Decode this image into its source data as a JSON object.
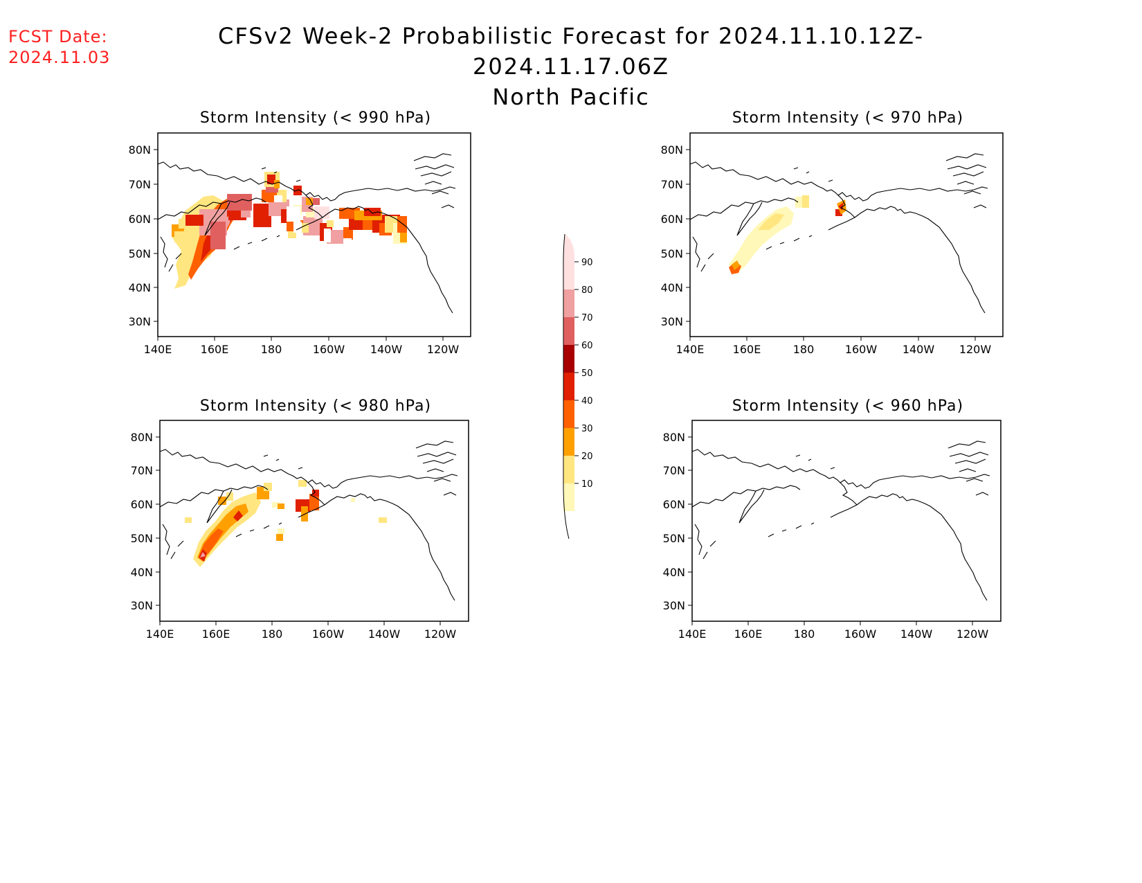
{
  "header": {
    "fcst_date_label": "FCST Date:",
    "fcst_date_value": "2024.11.03",
    "title_line1": "CFSv2 Week-2 Probabilistic Forecast for 2024.11.10.12Z-2024.11.17.06Z",
    "title_line2": "North Pacific"
  },
  "axes": {
    "lon_labels": [
      "140E",
      "160E",
      "180",
      "160W",
      "140W",
      "120W"
    ],
    "lat_labels": [
      "80N",
      "70N",
      "60N",
      "50N",
      "40N",
      "30N"
    ]
  },
  "panels": [
    {
      "title": "Storm Intensity (< 990 hPa)"
    },
    {
      "title": "Storm Intensity (< 970 hPa)"
    },
    {
      "title": "Storm Intensity (< 980 hPa)"
    },
    {
      "title": "Storm Intensity (< 960 hPa)"
    }
  ],
  "colorbar": {
    "levels": [
      "10",
      "20",
      "30",
      "40",
      "50",
      "60",
      "70",
      "80",
      "90"
    ],
    "colors": [
      "#fff8b8",
      "#ffe680",
      "#ffa000",
      "#ff6000",
      "#e02000",
      "#a80000",
      "#e06060",
      "#f0a0a0",
      "#ffe0e0"
    ]
  }
}
